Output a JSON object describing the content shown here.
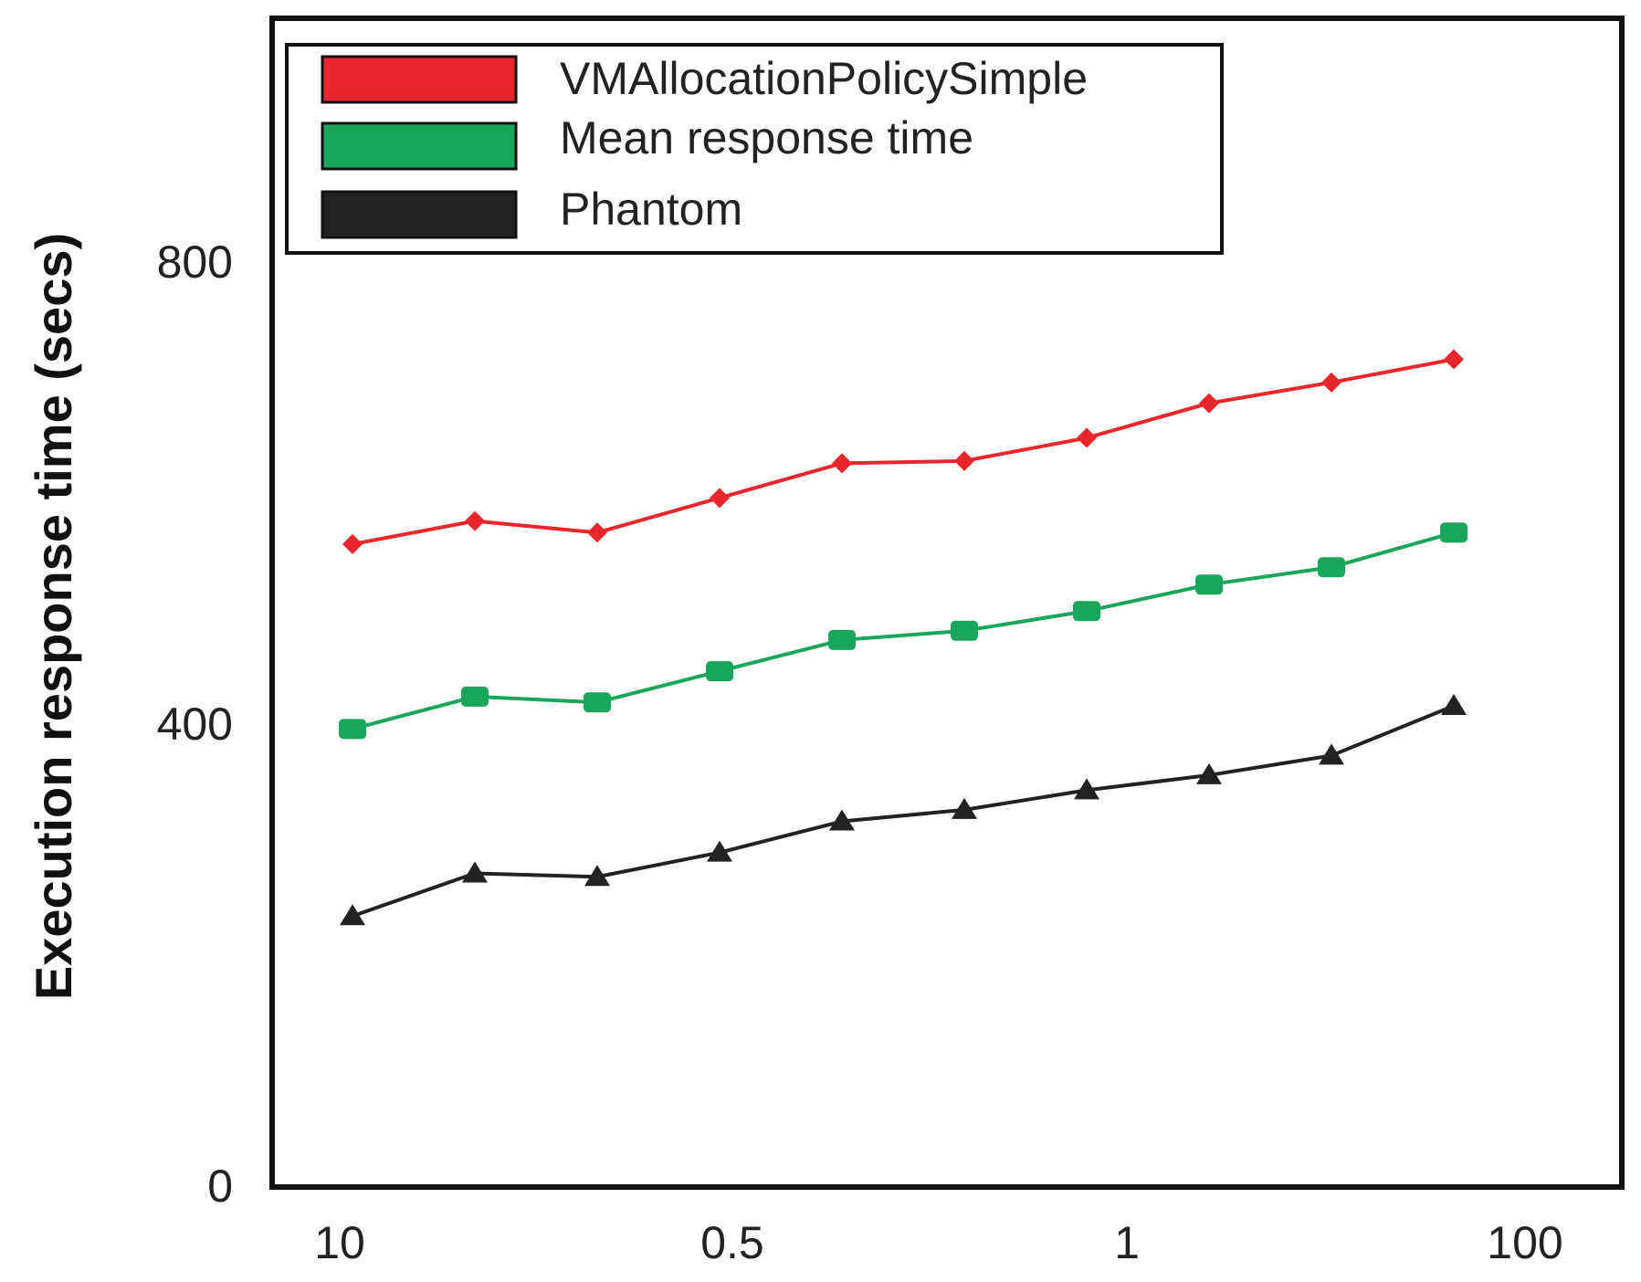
{
  "chart_data": {
    "type": "line",
    "title": "",
    "xlabel": "",
    "ylabel": "Execution response time (secs)",
    "x_tick_labels": [
      "10",
      "0.5",
      "1",
      "100"
    ],
    "y_ticks": [
      0,
      400,
      800
    ],
    "y_tick_labels": [
      "0",
      "400",
      "800"
    ],
    "ylim": [
      0,
      1000
    ],
    "x": [
      1,
      2,
      3,
      4,
      5,
      6,
      7,
      8,
      9,
      10
    ],
    "series": [
      {
        "name": "VMAllocationPolicySimple",
        "color": "#e8262b",
        "marker": "diamond",
        "values": [
          555,
          575,
          565,
          595,
          625,
          627,
          647,
          677,
          695,
          715
        ]
      },
      {
        "name": "Mean response time",
        "color": "#1aa65a",
        "marker": "square",
        "values": [
          395,
          423,
          418,
          445,
          472,
          480,
          497,
          520,
          535,
          565
        ]
      },
      {
        "name": "Phantom",
        "color": "#222222",
        "marker": "triangle",
        "values": [
          233,
          270,
          267,
          288,
          315,
          325,
          342,
          355,
          372,
          415
        ]
      }
    ],
    "legend_position": "top-left",
    "grid": false
  }
}
